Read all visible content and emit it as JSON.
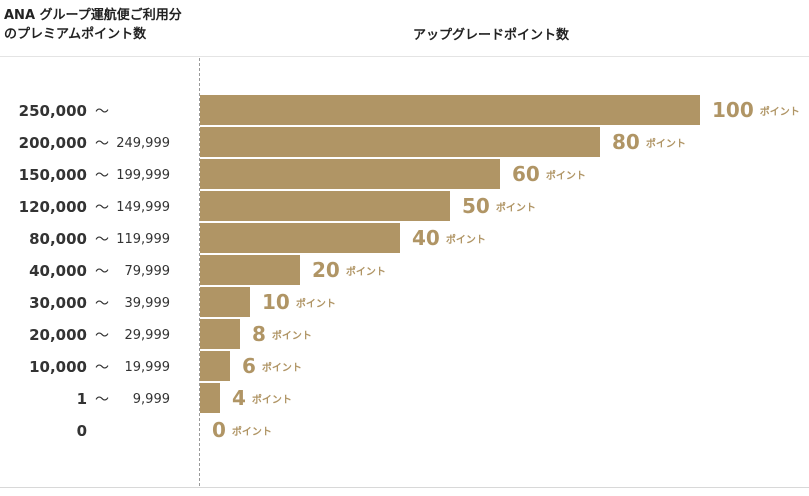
{
  "header": {
    "left_line1": "ANA グループ運航便ご利用分",
    "left_line2": "のプレミアムポイント数",
    "right": "アップグレードポイント数"
  },
  "colors": {
    "bar": "#b09565",
    "value_text": "#b09565"
  },
  "chart_data": {
    "type": "bar",
    "orientation": "horizontal",
    "title": "",
    "xlabel": "アップグレードポイント数",
    "ylabel": "ANA グループ運航便ご利用分のプレミアムポイント数",
    "unit": "ポイント",
    "tilde": "～",
    "categories": [
      {
        "min": "250,000",
        "max": ""
      },
      {
        "min": "200,000",
        "max": "249,999"
      },
      {
        "min": "150,000",
        "max": "199,999"
      },
      {
        "min": "120,000",
        "max": "149,999"
      },
      {
        "min": "80,000",
        "max": "119,999"
      },
      {
        "min": "40,000",
        "max": "79,999"
      },
      {
        "min": "30,000",
        "max": "39,999"
      },
      {
        "min": "20,000",
        "max": "29,999"
      },
      {
        "min": "10,000",
        "max": "19,999"
      },
      {
        "min": "1",
        "max": "9,999"
      },
      {
        "min": "0",
        "max": ""
      }
    ],
    "values": [
      100,
      80,
      60,
      50,
      40,
      20,
      10,
      8,
      6,
      4,
      0
    ],
    "xlim": [
      0,
      100
    ],
    "grid": false,
    "legend": "none"
  }
}
